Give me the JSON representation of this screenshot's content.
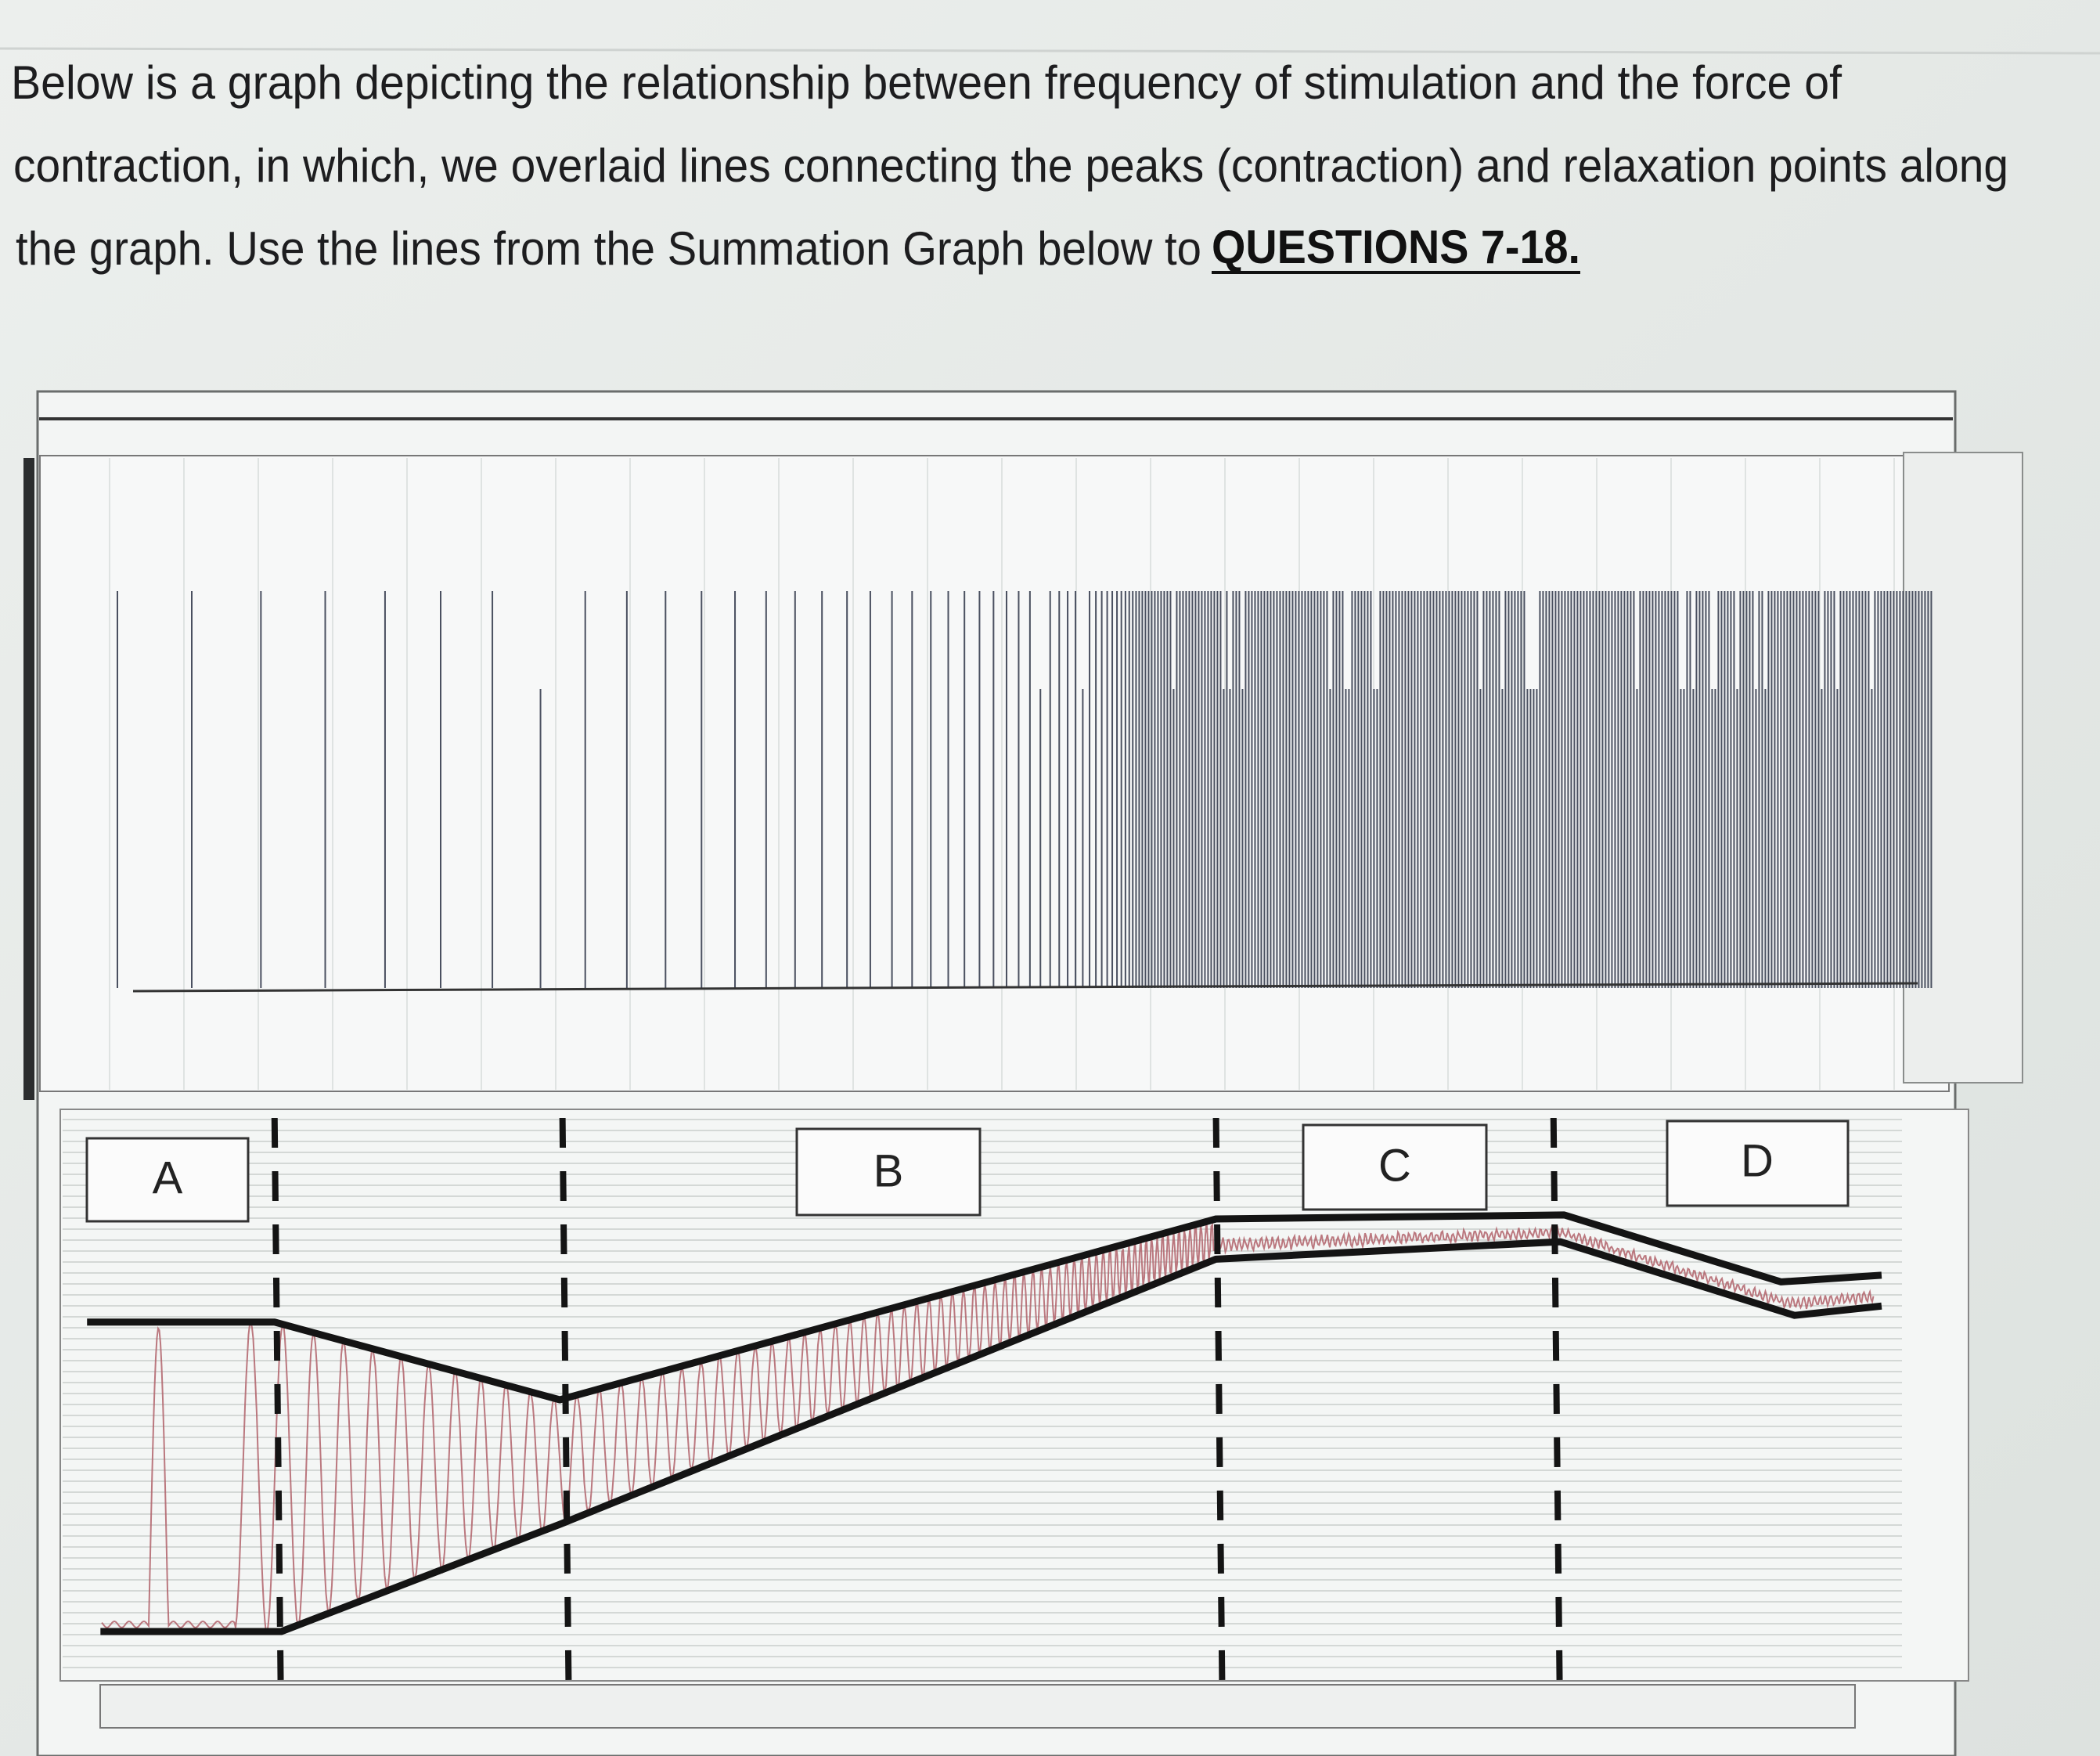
{
  "intro": {
    "lines": [
      "Below is a graph depicting the relationship between frequency of stimulation and the force of",
      "contraction, in which, we overlaid lines connecting the peaks (contraction) and relaxation points along",
      "the graph. Use the lines from the Summation Graph below to"
    ],
    "emphasis": "QUESTIONS 7-18."
  },
  "graph": {
    "labels": [
      "A",
      "B",
      "C",
      "D"
    ]
  }
}
